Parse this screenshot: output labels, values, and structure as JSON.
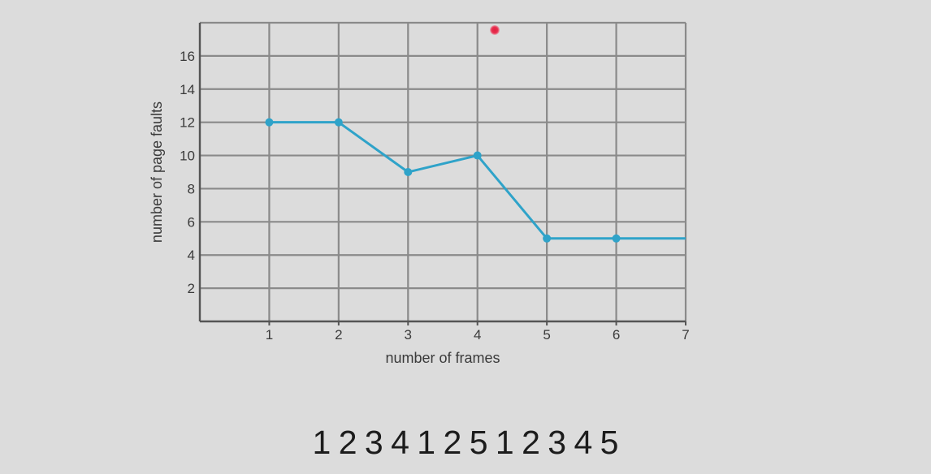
{
  "chart_data": {
    "type": "line",
    "xlabel": "number of frames",
    "ylabel": "number of page faults",
    "x_ticks": [
      "1",
      "2",
      "3",
      "4",
      "5",
      "6",
      "7"
    ],
    "y_ticks": [
      "2",
      "4",
      "6",
      "8",
      "10",
      "12",
      "14",
      "16"
    ],
    "xlim": [
      0,
      7
    ],
    "ylim": [
      0,
      18
    ],
    "grid": true,
    "series": [
      {
        "color": "#2fa3c9",
        "x": [
          1,
          2,
          3,
          4,
          5,
          6,
          7
        ],
        "y": [
          12,
          12,
          9,
          10,
          5,
          5,
          5
        ],
        "markers": [
          true,
          true,
          true,
          true,
          true,
          true,
          false
        ]
      }
    ]
  },
  "reference_string": "1 2 3 4 1 2 5 1 2 3 4 5",
  "colors": {
    "background": "#dcdcdc",
    "grid": "#8a8a8a",
    "axis": "#555555",
    "series": "#2fa3c9",
    "laser_pointer": "#e02040"
  }
}
